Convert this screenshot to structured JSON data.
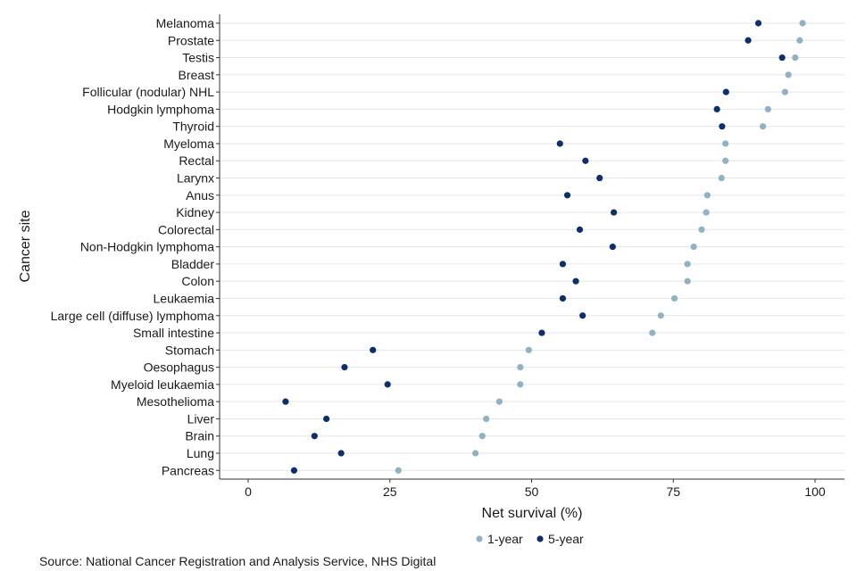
{
  "chart_data": {
    "type": "scatter",
    "categories": [
      "Melanoma",
      "Prostate",
      "Testis",
      "Breast",
      "Follicular (nodular) NHL",
      "Hodgkin lymphoma",
      "Thyroid",
      "Myeloma",
      "Rectal",
      "Larynx",
      "Anus",
      "Kidney",
      "Colorectal",
      "Non-Hodgkin lymphoma",
      "Bladder",
      "Colon",
      "Leukaemia",
      "Large cell (diffuse) lymphoma",
      "Small intestine",
      "Stomach",
      "Oesophagus",
      "Myeloid leukaemia",
      "Mesothelioma",
      "Liver",
      "Brain",
      "Lung",
      "Pancreas"
    ],
    "series": [
      {
        "name": "1-year",
        "color": "#8fb3c4",
        "values": [
          97.8,
          97.3,
          96.5,
          95.3,
          94.7,
          91.7,
          90.8,
          84.2,
          84.2,
          83.5,
          81.0,
          80.8,
          80.0,
          78.6,
          77.5,
          77.5,
          75.2,
          72.8,
          71.3,
          49.5,
          48.0,
          48.0,
          44.3,
          42.0,
          41.3,
          40.1,
          26.5
        ]
      },
      {
        "name": "5-year",
        "color": "#0d2f6b",
        "values": [
          90.0,
          88.2,
          94.2,
          null,
          84.3,
          82.7,
          83.6,
          55.0,
          59.5,
          62.0,
          56.3,
          64.5,
          58.5,
          64.3,
          55.5,
          57.8,
          55.5,
          59.0,
          51.8,
          22.0,
          17.0,
          24.6,
          6.6,
          13.8,
          11.7,
          16.4,
          8.1
        ]
      }
    ],
    "xlabel": "Net survival (%)",
    "ylabel": "Cancer site",
    "xlim": [
      0,
      105
    ],
    "xticks": [
      "0",
      "25",
      "50",
      "75",
      "100"
    ],
    "grid": "horizontal",
    "legend_position": "bottom"
  },
  "source": "Source: National Cancer Registration and Analysis Service, NHS Digital"
}
